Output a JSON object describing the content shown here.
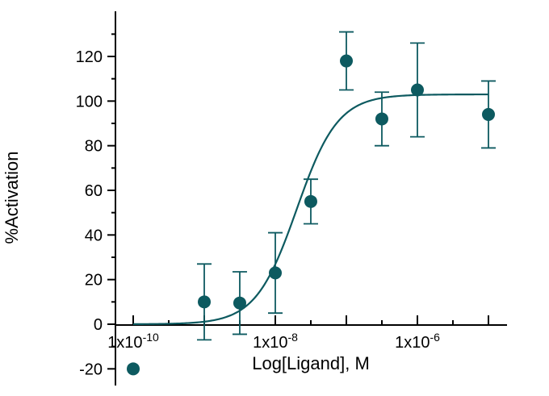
{
  "chart_data": {
    "type": "scatter",
    "xlabel": "Log[Ligand],  M",
    "ylabel": "%Activation",
    "x_scale": "log",
    "xlim": [
      1e-10,
      1e-05
    ],
    "ylim": [
      -20,
      140
    ],
    "x_tick_values": [
      1e-10,
      1e-08,
      1e-06
    ],
    "x_tick_labels": [
      "1x10-10",
      "1x10-8",
      "1x10-6"
    ],
    "y_ticks": [
      -20,
      0,
      20,
      40,
      60,
      80,
      100,
      120
    ],
    "grid": false,
    "color": "#0d5a60",
    "points": [
      {
        "x": 1e-10,
        "y": -20,
        "err": null
      },
      {
        "x": 1e-09,
        "y": 10,
        "err": 17
      },
      {
        "x": 3.16e-09,
        "y": 9.5,
        "err": 14
      },
      {
        "x": 1e-08,
        "y": 23,
        "err": 18
      },
      {
        "x": 3.16e-08,
        "y": 55,
        "err": 10
      },
      {
        "x": 1e-07,
        "y": 118,
        "err": 13
      },
      {
        "x": 3.16e-07,
        "y": 92,
        "err": 12
      },
      {
        "x": 1e-06,
        "y": 105,
        "err": 21
      },
      {
        "x": 1e-05,
        "y": 94,
        "err": 15
      }
    ],
    "fit": {
      "model": "sigmoidal dose-response",
      "bottom": 0,
      "top": 103,
      "ec50": 2e-08,
      "hill": 1.5
    }
  }
}
